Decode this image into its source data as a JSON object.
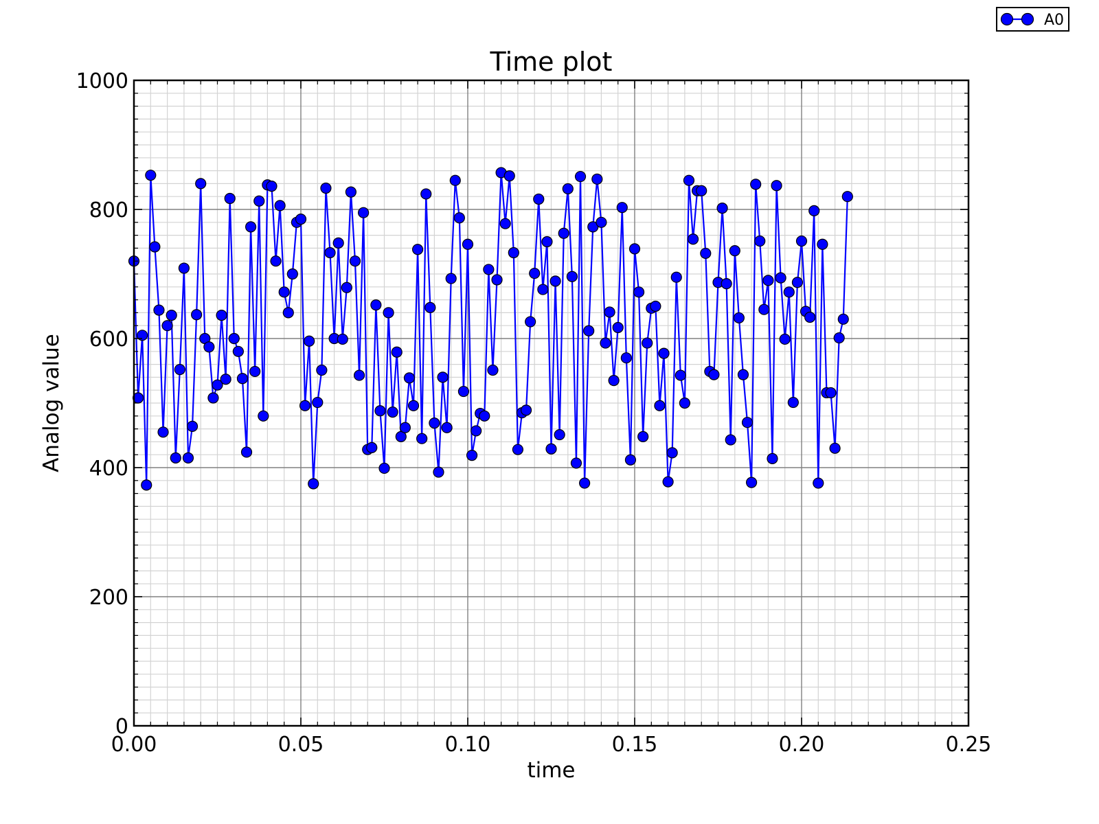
{
  "chart_data": {
    "type": "line",
    "title": "Time plot",
    "xlabel": "time",
    "ylabel": "Analog value",
    "xlim": [
      0,
      0.25
    ],
    "ylim": [
      0,
      1000
    ],
    "xticks": [
      "0.00",
      "0.05",
      "0.10",
      "0.15",
      "0.20",
      "0.25"
    ],
    "yticks": [
      "0",
      "200",
      "400",
      "600",
      "800",
      "1000"
    ],
    "grid": true,
    "legend_position": "top-right",
    "colors": {
      "line": "#0000ff",
      "marker_fill": "#0000ff",
      "marker_edge": "#000000"
    },
    "series": [
      {
        "name": "A0",
        "x_start": 0.0,
        "x_step": 0.00125,
        "values": [
          720,
          508,
          605,
          373,
          853,
          742,
          644,
          455,
          620,
          636,
          415,
          552,
          709,
          415,
          464,
          637,
          840,
          600,
          587,
          508,
          528,
          636,
          537,
          817,
          600,
          580,
          538,
          424,
          773,
          549,
          813,
          480,
          838,
          836,
          720,
          806,
          672,
          640,
          700,
          780,
          785,
          496,
          596,
          375,
          501,
          551,
          833,
          733,
          600,
          748,
          599,
          679,
          827,
          720,
          543,
          795,
          428,
          431,
          652,
          488,
          399,
          640,
          486,
          579,
          448,
          462,
          539,
          496,
          738,
          445,
          824,
          648,
          469,
          393,
          540,
          462,
          693,
          845,
          787,
          518,
          746,
          419,
          457,
          484,
          480,
          707,
          551,
          691,
          857,
          778,
          852,
          733,
          428,
          485,
          489,
          626,
          701,
          816,
          676,
          750,
          429,
          689,
          451,
          763,
          832,
          696,
          407,
          851,
          376,
          612,
          773,
          847,
          780,
          593,
          641,
          535,
          617,
          803,
          570,
          412,
          739,
          672,
          448,
          593,
          647,
          650,
          496,
          577,
          378,
          423,
          695,
          543,
          500,
          845,
          754,
          829,
          829,
          732,
          549,
          544,
          687,
          802,
          685,
          443,
          736,
          632,
          544,
          470,
          377,
          839,
          751,
          645,
          690,
          414,
          837,
          694,
          599,
          672,
          501,
          687,
          751,
          642,
          633,
          798,
          376,
          746,
          516,
          516,
          430,
          601,
          630,
          820
        ]
      }
    ]
  }
}
